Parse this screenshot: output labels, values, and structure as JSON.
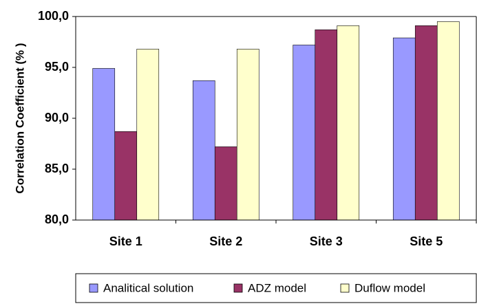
{
  "chart_data": {
    "type": "bar",
    "y_label": "Correlation Coefficient (% )",
    "categories": [
      "Site 1",
      "Site 2",
      "Site 3",
      "Site 5"
    ],
    "series": [
      {
        "name": "Analitical solution",
        "color": "#9999ff",
        "values": [
          94.9,
          93.7,
          97.2,
          97.9
        ]
      },
      {
        "name": "ADZ model",
        "color": "#993366",
        "values": [
          88.7,
          87.2,
          98.7,
          99.1
        ]
      },
      {
        "name": "Duflow model",
        "color": "#ffffcc",
        "values": [
          96.8,
          96.8,
          99.1,
          99.5
        ]
      }
    ],
    "ylim": [
      80,
      100
    ],
    "yticks": [
      {
        "value": 80,
        "label": "80,0"
      },
      {
        "value": 85,
        "label": "85,0"
      },
      {
        "value": 90,
        "label": "90,0"
      },
      {
        "value": 95,
        "label": "95,0"
      },
      {
        "value": 100,
        "label": "100,0"
      }
    ]
  }
}
